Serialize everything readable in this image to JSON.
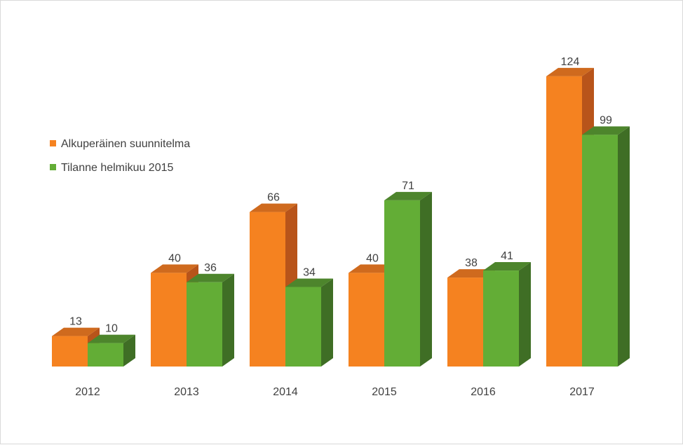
{
  "chart_data": {
    "type": "bar",
    "categories": [
      "2012",
      "2013",
      "2014",
      "2015",
      "2016",
      "2017"
    ],
    "series": [
      {
        "name": "Alkuperäinen suunnitelma",
        "values": [
          13,
          40,
          66,
          40,
          38,
          124
        ],
        "color": "#f58220",
        "side_color": "#b8541a",
        "top_color": "#cf6a1e"
      },
      {
        "name": "Tilanne helmikuu 2015",
        "values": [
          10,
          36,
          34,
          71,
          41,
          99
        ],
        "color": "#63ad36",
        "side_color": "#3f6e25",
        "top_color": "#4d852c"
      }
    ],
    "title": "",
    "xlabel": "",
    "ylabel": "",
    "ylim": [
      0,
      130
    ],
    "grid": false,
    "legend_position": "left",
    "data_labels": true
  }
}
